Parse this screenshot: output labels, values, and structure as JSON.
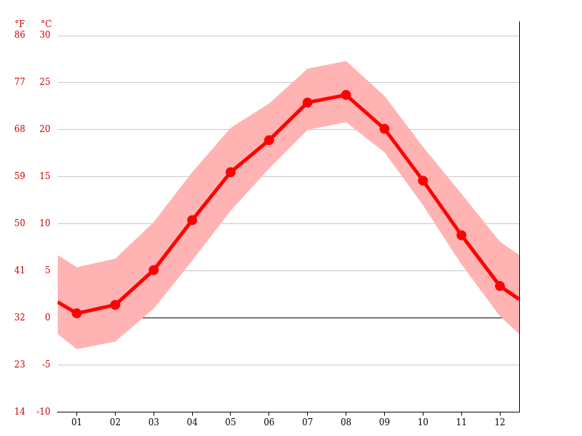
{
  "chart_data": {
    "type": "line",
    "y_label": "°C",
    "y2_label": "°F",
    "x": [
      0.5,
      1,
      2,
      3,
      4,
      5,
      6,
      7,
      8,
      9,
      10,
      11,
      12,
      12.5
    ],
    "series": [
      {
        "type": "area",
        "color": "#ffb3b3",
        "values": [
          6.7,
          5.4,
          6.3,
          10.2,
          15.5,
          20.2,
          22.8,
          26.5,
          27.3,
          23.6,
          18.2,
          13.2,
          8.1,
          6.7
        ]
      },
      {
        "type": "area",
        "color": "#ffb3b3",
        "values": [
          -1.7,
          -3.3,
          -2.5,
          1.0,
          6.1,
          11.4,
          15.9,
          20.0,
          20.8,
          17.6,
          12.0,
          5.7,
          0.2,
          -1.7
        ]
      },
      {
        "type": "line",
        "color": "#ff0000",
        "marker": "circle",
        "values": [
          1.7,
          0.5,
          1.4,
          5.1,
          10.4,
          15.5,
          18.9,
          22.9,
          23.7,
          20.1,
          14.6,
          8.8,
          3.4,
          2.0
        ]
      }
    ],
    "xlim": [
      0.5,
      12.5
    ],
    "xticks": [
      {
        "value": 1,
        "label": "01"
      },
      {
        "value": 2,
        "label": "02"
      },
      {
        "value": 3,
        "label": "03"
      },
      {
        "value": 4,
        "label": "04"
      },
      {
        "value": 5,
        "label": "05"
      },
      {
        "value": 6,
        "label": "06"
      },
      {
        "value": 7,
        "label": "07"
      },
      {
        "value": 8,
        "label": "08"
      },
      {
        "value": 9,
        "label": "09"
      },
      {
        "value": 10,
        "label": "10"
      },
      {
        "value": 11,
        "label": "11"
      },
      {
        "value": 12,
        "label": "12"
      }
    ],
    "ylim": [
      -10,
      30
    ],
    "yticks": [
      -10,
      -5,
      0,
      5,
      10,
      15,
      20,
      25,
      30
    ],
    "y2lim": [
      14,
      86
    ],
    "y2ticks": [
      14,
      23,
      32,
      41,
      50,
      59,
      68,
      77,
      86
    ],
    "grid": true
  }
}
